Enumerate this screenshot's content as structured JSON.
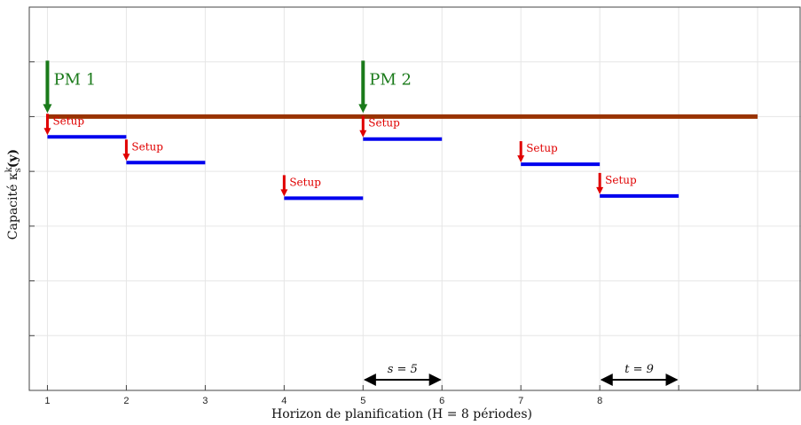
{
  "chart_data": {
    "type": "gantt-step",
    "xlabel": "Horizon de planification (H = 8 périodes)",
    "ylabel": "Capacité κ",
    "ylabel_sup": "k",
    "ylabel_sub": "s",
    "ylabel_tail": "(y)",
    "x_ticks": [
      "1",
      "2",
      "3",
      "4",
      "5",
      "6",
      "7",
      "8"
    ],
    "xlim": [
      0.77,
      10.55
    ],
    "ylim": [
      0,
      7
    ],
    "grid": true,
    "capacity_line": {
      "x_start": 1,
      "x_end": 10,
      "y": 5,
      "color": "#993300"
    },
    "pm_events": [
      {
        "label": "PM 1",
        "x": 1,
        "color": "#1a7a1a"
      },
      {
        "label": "PM 2",
        "x": 5,
        "color": "#1a7a1a"
      }
    ],
    "setup_label": "Setup",
    "setup_color": "#e00000",
    "segments": [
      {
        "x_start": 1,
        "x_end": 2,
        "y": 4.63
      },
      {
        "x_start": 2,
        "x_end": 3,
        "y": 4.16
      },
      {
        "x_start": 4,
        "x_end": 5,
        "y": 3.51
      },
      {
        "x_start": 5,
        "x_end": 6,
        "y": 4.59
      },
      {
        "x_start": 7,
        "x_end": 8,
        "y": 4.13
      },
      {
        "x_start": 8,
        "x_end": 9,
        "y": 3.55
      }
    ],
    "segment_color": "#0000ee",
    "intervals": [
      {
        "label": "s = 5",
        "x_start": 5,
        "x_end": 6
      },
      {
        "label": "t = 9",
        "x_start": 8,
        "x_end": 9
      }
    ]
  }
}
